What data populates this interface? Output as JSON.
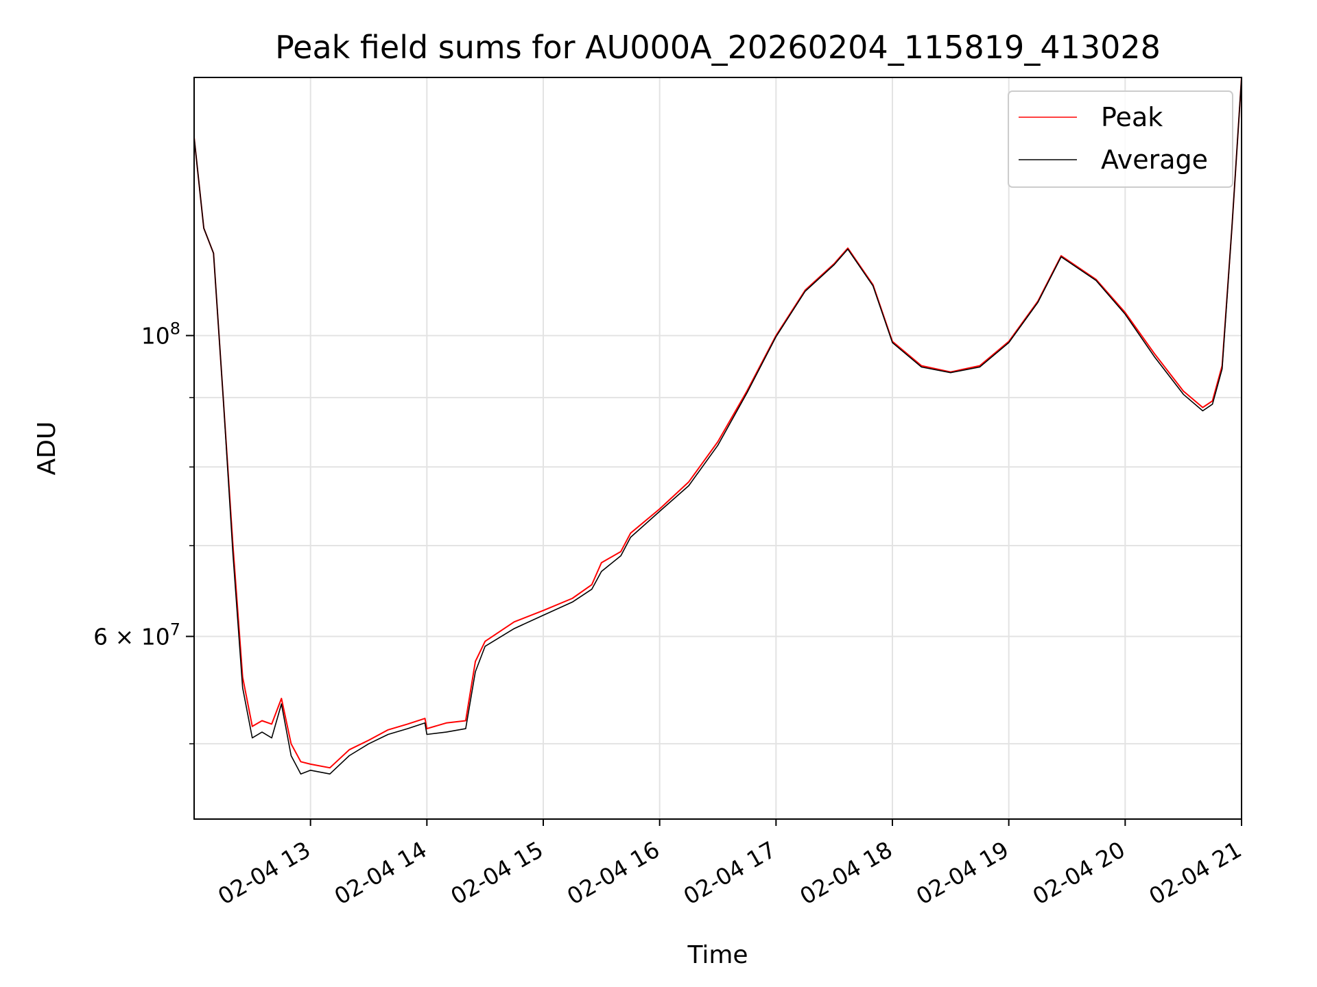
{
  "chart_data": {
    "type": "line",
    "title": "Peak field sums for AU000A_20260204_115819_413028",
    "xlabel": "Time",
    "ylabel": "ADU",
    "y_scale": "log",
    "grid": true,
    "legend_position": "top-right",
    "x_ticks": [
      "02-04 13",
      "02-04 14",
      "02-04 15",
      "02-04 16",
      "02-04 17",
      "02-04 18",
      "02-04 19",
      "02-04 20",
      "02-04 21"
    ],
    "y_ticks": [
      {
        "value": 100000000,
        "base": "10",
        "exp": "8"
      },
      {
        "value": 60000000,
        "mantissa": "6",
        "base": "10",
        "exp": "7"
      }
    ],
    "y_minor_ticks": [
      50000000,
      70000000,
      80000000,
      90000000
    ],
    "xlim": [
      "2026-02-04 12:00",
      "2026-02-04 21:00"
    ],
    "ylim": [
      44000000,
      155000000
    ],
    "x_points": [
      "2026-02-04 12:00",
      "2026-02-04 12:05",
      "2026-02-04 12:10",
      "2026-02-04 12:15",
      "2026-02-04 12:20",
      "2026-02-04 12:25",
      "2026-02-04 12:30",
      "2026-02-04 12:35",
      "2026-02-04 12:40",
      "2026-02-04 12:45",
      "2026-02-04 12:50",
      "2026-02-04 12:55",
      "2026-02-04 13:00",
      "2026-02-04 13:10",
      "2026-02-04 13:20",
      "2026-02-04 13:30",
      "2026-02-04 13:40",
      "2026-02-04 13:50",
      "2026-02-04 13:59",
      "2026-02-04 14:00",
      "2026-02-04 14:10",
      "2026-02-04 14:20",
      "2026-02-04 14:25",
      "2026-02-04 14:30",
      "2026-02-04 14:45",
      "2026-02-04 15:00",
      "2026-02-04 15:15",
      "2026-02-04 15:25",
      "2026-02-04 15:30",
      "2026-02-04 15:40",
      "2026-02-04 15:45",
      "2026-02-04 16:00",
      "2026-02-04 16:15",
      "2026-02-04 16:30",
      "2026-02-04 16:45",
      "2026-02-04 17:00",
      "2026-02-04 17:15",
      "2026-02-04 17:30",
      "2026-02-04 17:37",
      "2026-02-04 17:50",
      "2026-02-04 18:00",
      "2026-02-04 18:15",
      "2026-02-04 18:30",
      "2026-02-04 18:45",
      "2026-02-04 19:00",
      "2026-02-04 19:15",
      "2026-02-04 19:27",
      "2026-02-04 19:45",
      "2026-02-04 20:00",
      "2026-02-04 20:15",
      "2026-02-04 20:30",
      "2026-02-04 20:40",
      "2026-02-04 20:45",
      "2026-02-04 20:50",
      "2026-02-04 20:55",
      "2026-02-04 21:00"
    ],
    "series": [
      {
        "name": "Peak",
        "color": "#ff0000",
        "values": [
          140000000,
          120000000,
          115000000,
          90000000,
          70000000,
          56000000,
          51500000,
          52000000,
          51700000,
          54000000,
          50000000,
          48500000,
          48300000,
          48000000,
          49500000,
          50300000,
          51200000,
          51700000,
          52200000,
          51300000,
          51800000,
          52000000,
          57500000,
          59500000,
          61500000,
          62700000,
          64000000,
          65500000,
          68000000,
          69300000,
          71500000,
          74500000,
          78000000,
          83500000,
          91000000,
          100000000,
          108000000,
          113000000,
          116000000,
          109000000,
          99000000,
          95000000,
          94000000,
          95000000,
          99000000,
          106000000,
          114500000,
          110000000,
          104000000,
          97000000,
          91000000,
          88500000,
          89500000,
          95000000,
          120000000,
          155000000
        ]
      },
      {
        "name": "Average",
        "color": "#000000",
        "values": [
          140000000,
          120000000,
          115000000,
          90000000,
          69000000,
          55000000,
          50500000,
          51000000,
          50500000,
          53500000,
          49000000,
          47500000,
          47800000,
          47500000,
          49000000,
          50000000,
          50800000,
          51300000,
          51800000,
          50800000,
          51000000,
          51300000,
          56500000,
          59000000,
          60800000,
          62200000,
          63600000,
          65000000,
          67000000,
          68800000,
          71000000,
          74200000,
          77500000,
          83000000,
          90700000,
          99800000,
          107800000,
          112800000,
          115800000,
          108800000,
          98800000,
          94800000,
          93900000,
          94800000,
          98800000,
          105800000,
          114300000,
          109800000,
          103700000,
          96500000,
          90500000,
          88000000,
          89000000,
          94500000,
          120000000,
          155000000
        ]
      }
    ]
  }
}
